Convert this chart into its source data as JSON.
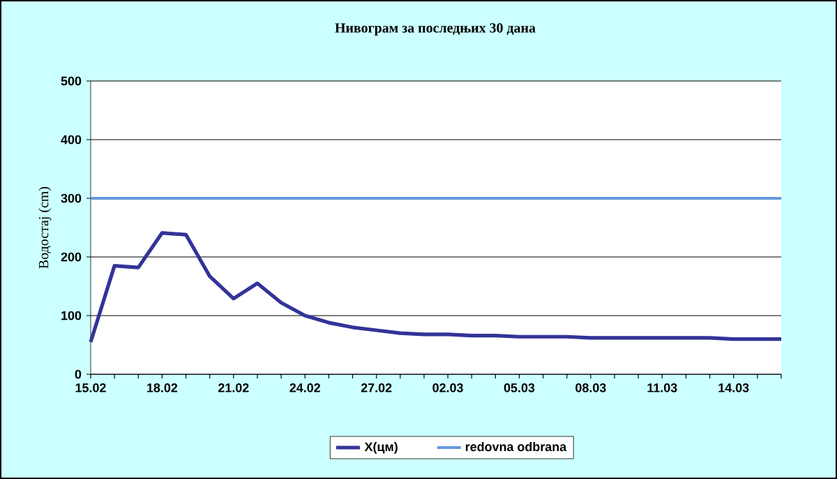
{
  "chart_data": {
    "type": "line",
    "title": "Нивограм за последњих 30 дана",
    "ylabel": "Водостај (cm)",
    "categories": [
      "15.02",
      null,
      null,
      "18.02",
      null,
      null,
      "21.02",
      null,
      null,
      "24.02",
      null,
      null,
      "27.02",
      null,
      null,
      "02.03",
      null,
      null,
      "05.03",
      null,
      null,
      "08.03",
      null,
      null,
      "11.03",
      null,
      null,
      "14.03",
      null,
      null
    ],
    "series": [
      {
        "name": "X(цм)",
        "color": "#333399",
        "values": [
          55,
          185,
          182,
          241,
          238,
          167,
          129,
          155,
          122,
          100,
          88,
          80,
          75,
          70,
          68,
          68,
          66,
          66,
          64,
          64,
          64,
          62,
          62,
          62,
          62,
          62,
          62,
          60,
          60,
          60
        ]
      }
    ],
    "ref_lines": [
      {
        "axis": "y",
        "value": 300,
        "label": "redovna odbrana",
        "color": "#6699dd"
      }
    ],
    "ylim": [
      0,
      500
    ],
    "yticks": [
      0,
      100,
      200,
      300,
      400,
      500
    ],
    "grid": "y",
    "legend": "bottom",
    "marker": "none",
    "line_style": "solid"
  }
}
